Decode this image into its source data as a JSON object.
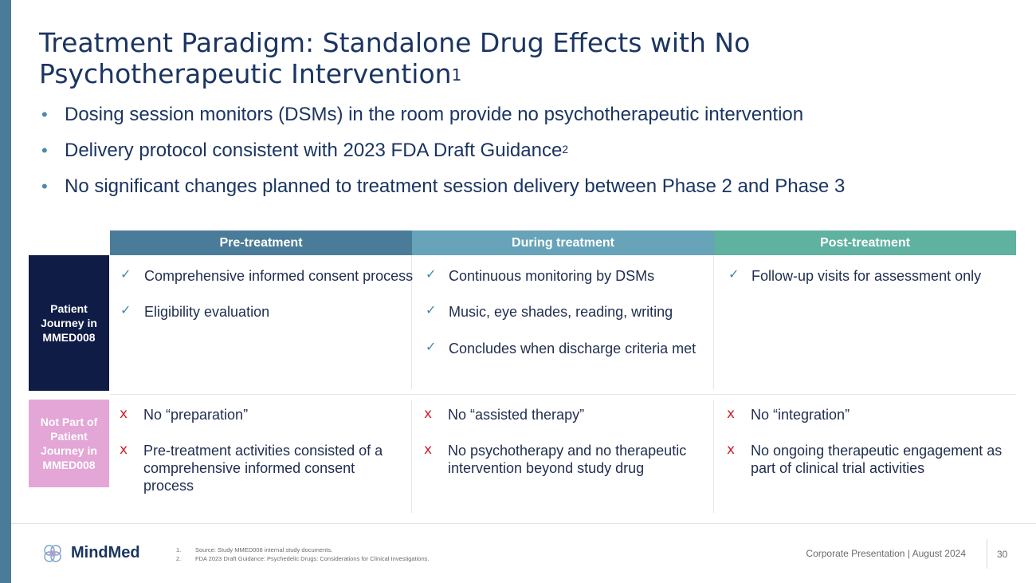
{
  "slide": {
    "title": "Treatment Paradigm: Standalone Drug Effects with No Psychotherapeutic Intervention",
    "title_sup": "1",
    "bullets": [
      {
        "text": "Dosing session monitors (DSMs) in the room provide no psychotherapeutic intervention",
        "sup": ""
      },
      {
        "text": "Delivery protocol consistent with 2023 FDA Draft Guidance",
        "sup": "2"
      },
      {
        "text": "No significant changes planned to treatment session delivery between Phase 2 and Phase 3",
        "sup": ""
      }
    ]
  },
  "table": {
    "columns": [
      "Pre-treatment",
      "During treatment",
      "Post-treatment"
    ],
    "column_colors": [
      "#4a7c99",
      "#67a3b9",
      "#5fb1a0"
    ],
    "rows": {
      "patient": {
        "label": "Patient Journey in MMED008",
        "color": "#0f1c45",
        "pre": [
          "Comprehensive informed consent process",
          "Eligibility evaluation"
        ],
        "during": [
          "Continuous monitoring by DSMs",
          "Music, eye shades, reading, writing",
          "Concludes when discharge criteria met"
        ],
        "post": [
          "Follow-up visits for assessment only"
        ]
      },
      "notpart": {
        "label": "Not Part of Patient Journey in MMED008",
        "color": "#e3a6d6",
        "pre": [
          "No “preparation”",
          "Pre-treatment activities consisted of a comprehensive informed consent process"
        ],
        "during": [
          "No “assisted therapy”",
          "No psychotherapy and no therapeutic intervention beyond study drug"
        ],
        "post": [
          "No “integration”",
          "No ongoing therapeutic engagement as part of clinical trial activities"
        ]
      }
    },
    "check_symbol": "✓",
    "x_symbol": "x"
  },
  "footer": {
    "brand": "MindMed",
    "footnotes": [
      {
        "num": "1.",
        "text": "Source: Study MMED008 internal study documents."
      },
      {
        "num": "2.",
        "text": "FDA 2023 Draft Guidance: Psychedelic Drugs: Considerations for Clinical Investigations."
      }
    ],
    "presentation": "Corporate Presentation | August 2024",
    "page_number": "30",
    "logo_icon": "brain-icon"
  }
}
